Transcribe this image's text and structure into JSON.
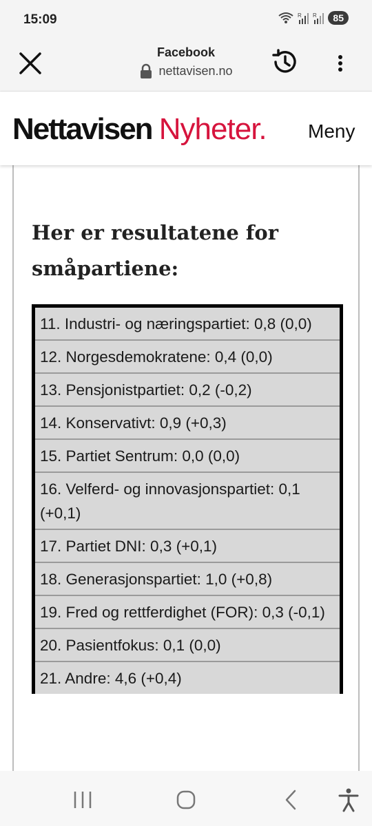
{
  "status_bar": {
    "time": "15:09",
    "battery": "85",
    "icons": [
      "wifi-icon",
      "signal-icon",
      "signal-icon"
    ]
  },
  "browser": {
    "title": "Facebook",
    "url": "nettavisen.no"
  },
  "site": {
    "logo_main": "Nettavisen",
    "logo_accent": "Nyheter.",
    "brand_color": "#d6143d",
    "menu_label": "Meny"
  },
  "article": {
    "heading": "Her er resultatene for småpartiene:",
    "results": [
      "11. Industri- og næringspartiet: 0,8 (0,0)",
      "12. Norgesdemokratene: 0,4 (0,0)",
      "13. Pensjonistpartiet: 0,2 (-0,2)",
      "14. Konservativt: 0,9 (+0,3)",
      "15. Partiet Sentrum: 0,0 (0,0)",
      "16. Velferd- og innovasjonspartiet: 0,1 (+0,1)",
      "17. Partiet DNI: 0,3 (+0,1)",
      "18. Generasjonspartiet: 1,0 (+0,8)",
      "19. Fred og rettferdighet (FOR): 0,3 (-0,1)",
      "20. Pasientfokus: 0,1 (0,0)",
      "21. Andre: 4,6 (+0,4)"
    ]
  },
  "nav": [
    "recent-apps-icon",
    "home-icon",
    "back-icon",
    "accessibility-icon"
  ]
}
